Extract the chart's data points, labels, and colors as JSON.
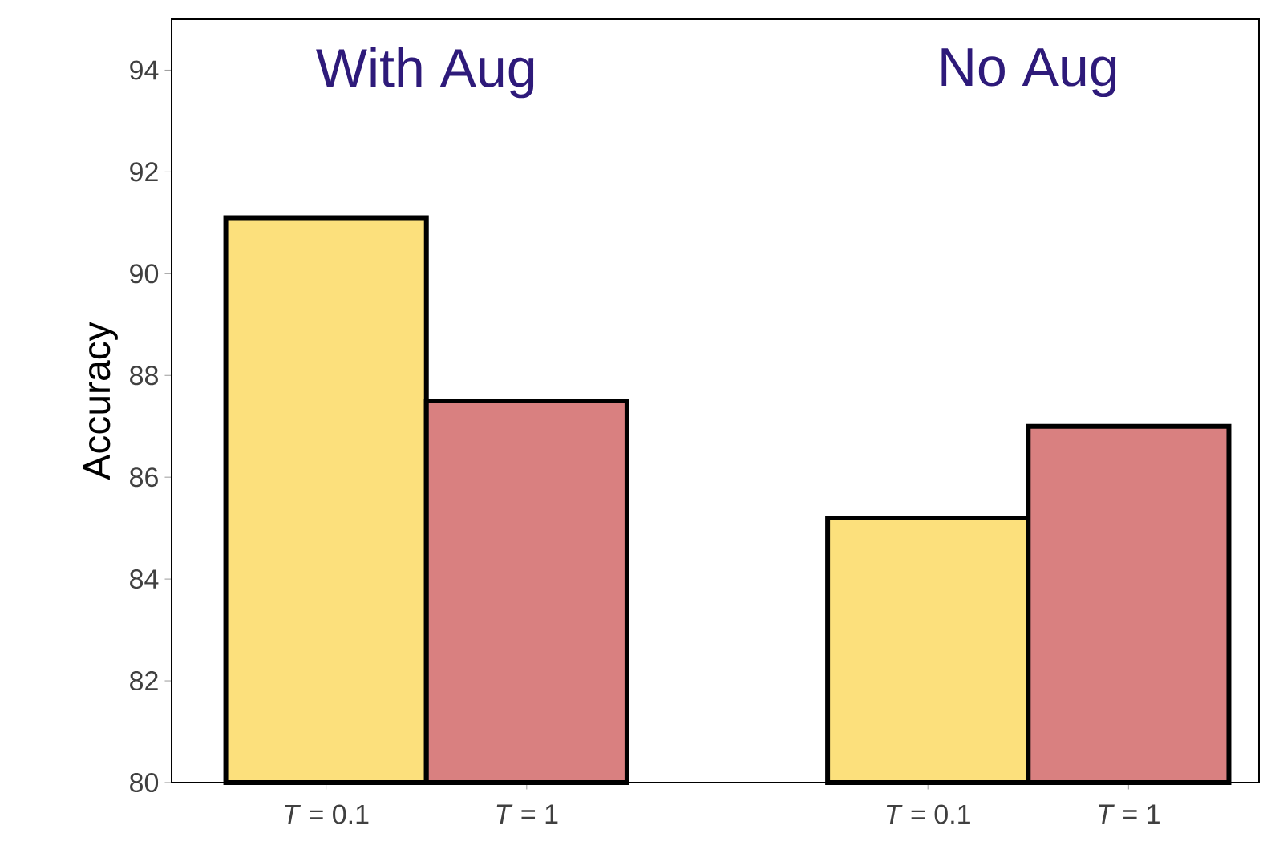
{
  "chart_data": {
    "type": "bar",
    "ylabel": "Accuracy",
    "categories": [
      "*T* = 0.1",
      "*T* = 1",
      null,
      "*T* = 0.1",
      "*T* = 1"
    ],
    "values": [
      91.1,
      87.5,
      null,
      85.2,
      87.0
    ],
    "colors": [
      "#fce07c",
      "#d98080",
      "#ffffff",
      "#fce07c",
      "#d98080"
    ],
    "ylim": [
      80,
      95
    ],
    "yticks": [
      80,
      82,
      84,
      86,
      88,
      90,
      92,
      94
    ],
    "annotations": [
      "With Aug",
      "No Aug"
    ]
  }
}
